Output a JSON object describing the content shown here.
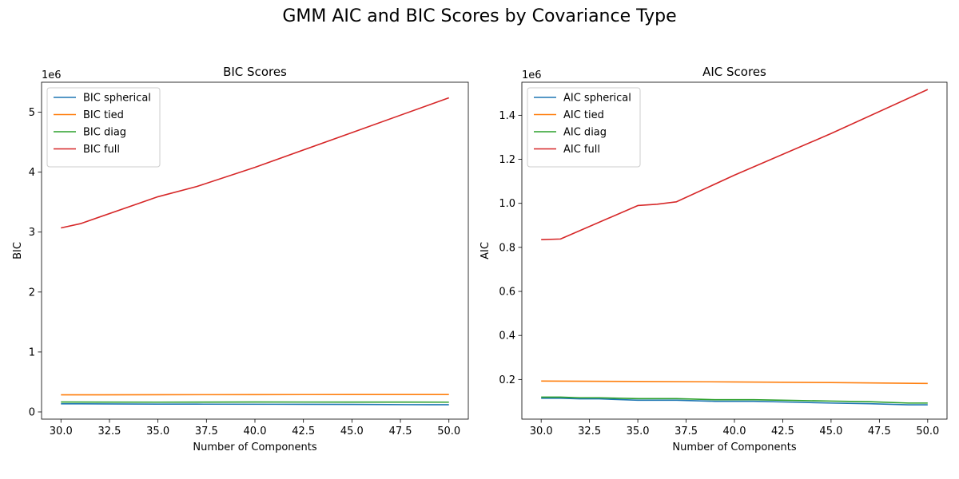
{
  "suptitle": "GMM AIC and BIC Scores by Covariance Type",
  "chart_data": [
    {
      "type": "line",
      "title": "BIC Scores",
      "xlabel": "Number of Components",
      "ylabel": "BIC",
      "offset_label": "1e6",
      "xlim": [
        29,
        51
      ],
      "ylim": [
        -0.12,
        5.5
      ],
      "xticks": [
        30.0,
        32.5,
        35.0,
        37.5,
        40.0,
        42.5,
        45.0,
        47.5,
        50.0
      ],
      "xtick_labels": [
        "30.0",
        "32.5",
        "35.0",
        "37.5",
        "40.0",
        "42.5",
        "45.0",
        "47.5",
        "50.0"
      ],
      "yticks": [
        0,
        1,
        2,
        3,
        4,
        5
      ],
      "ytick_labels": [
        "0",
        "1",
        "2",
        "3",
        "4",
        "5"
      ],
      "legend_position": "top-left",
      "series": [
        {
          "name": "BIC spherical",
          "color": "#1f77b4",
          "x": [
            30,
            31,
            35,
            37,
            41,
            45,
            49,
            50
          ],
          "y": [
            0.135,
            0.135,
            0.13,
            0.13,
            0.128,
            0.125,
            0.12,
            0.12
          ]
        },
        {
          "name": "BIC tied",
          "color": "#ff7f0e",
          "x": [
            30,
            35,
            40,
            45,
            50
          ],
          "y": [
            0.285,
            0.287,
            0.289,
            0.29,
            0.291
          ]
        },
        {
          "name": "BIC diag",
          "color": "#2ca02c",
          "x": [
            30,
            35,
            40,
            45,
            50
          ],
          "y": [
            0.165,
            0.163,
            0.165,
            0.164,
            0.163
          ]
        },
        {
          "name": "BIC full",
          "color": "#d62728",
          "x": [
            30,
            31,
            35,
            37,
            40,
            45,
            50
          ],
          "y": [
            3.07,
            3.14,
            3.59,
            3.76,
            4.08,
            4.66,
            5.24
          ]
        }
      ]
    },
    {
      "type": "line",
      "title": "AIC Scores",
      "xlabel": "Number of Components",
      "ylabel": "AIC",
      "offset_label": "1e6",
      "xlim": [
        29,
        51
      ],
      "ylim": [
        0.02,
        1.55
      ],
      "xticks": [
        30.0,
        32.5,
        35.0,
        37.5,
        40.0,
        42.5,
        45.0,
        47.5,
        50.0
      ],
      "xtick_labels": [
        "30.0",
        "32.5",
        "35.0",
        "37.5",
        "40.0",
        "42.5",
        "45.0",
        "47.5",
        "50.0"
      ],
      "yticks": [
        0.2,
        0.4,
        0.6,
        0.8,
        1.0,
        1.2,
        1.4
      ],
      "ytick_labels": [
        "0.2",
        "0.4",
        "0.6",
        "0.8",
        "1.0",
        "1.2",
        "1.4"
      ],
      "legend_position": "top-left",
      "series": [
        {
          "name": "AIC spherical",
          "color": "#1f77b4",
          "x": [
            30,
            31,
            32,
            33,
            35,
            37,
            39,
            41,
            43,
            45,
            47,
            49,
            50
          ],
          "y": [
            0.115,
            0.115,
            0.112,
            0.112,
            0.106,
            0.106,
            0.101,
            0.101,
            0.097,
            0.093,
            0.09,
            0.085,
            0.085
          ]
        },
        {
          "name": "AIC tied",
          "color": "#ff7f0e",
          "x": [
            30,
            35,
            40,
            45,
            50
          ],
          "y": [
            0.193,
            0.191,
            0.189,
            0.186,
            0.182
          ]
        },
        {
          "name": "AIC diag",
          "color": "#2ca02c",
          "x": [
            30,
            31,
            32,
            33,
            35,
            37,
            39,
            41,
            43,
            45,
            47,
            49,
            50
          ],
          "y": [
            0.12,
            0.12,
            0.117,
            0.117,
            0.113,
            0.113,
            0.108,
            0.108,
            0.105,
            0.102,
            0.099,
            0.093,
            0.093
          ]
        },
        {
          "name": "AIC full",
          "color": "#d62728",
          "x": [
            30,
            31,
            35,
            36,
            37,
            40,
            45,
            50
          ],
          "y": [
            0.835,
            0.838,
            0.99,
            0.996,
            1.007,
            1.128,
            1.317,
            1.517
          ]
        }
      ]
    }
  ]
}
